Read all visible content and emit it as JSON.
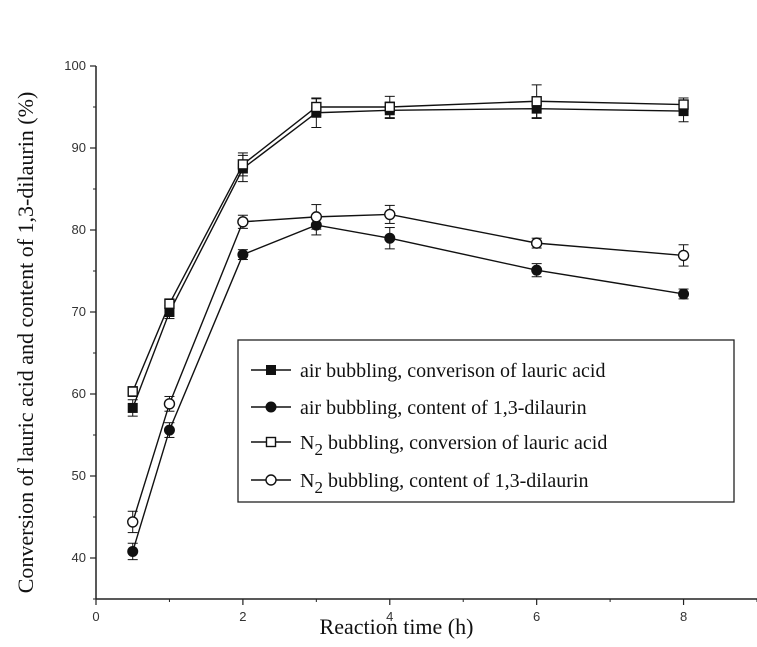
{
  "chart_data": {
    "type": "line",
    "xlabel": "Reaction time (h)",
    "ylabel": "Conversion of lauric acid and content of 1,3-dilaurin (%)",
    "xlim": [
      0,
      9
    ],
    "ylim": [
      35,
      100
    ],
    "x_ticks": [
      "0",
      "2",
      "4",
      "6",
      "8"
    ],
    "y_ticks": [
      "40",
      "50",
      "60",
      "70",
      "80",
      "90",
      "100"
    ],
    "legend_position": "lower-right",
    "grid": false,
    "x": [
      0.5,
      1,
      2,
      3,
      4,
      6,
      8
    ],
    "series": [
      {
        "name": "air bubbling, converison of lauric acid",
        "legend_prefix": "",
        "legend_sub": "",
        "legend_rest": "air bubbling, converison of lauric acid",
        "marker": "square-filled",
        "values": [
          58.3,
          70.0,
          87.5,
          94.3,
          94.6,
          94.8,
          94.5
        ],
        "errors": [
          1.0,
          0.8,
          1.6,
          1.8,
          1.0,
          1.2,
          1.3
        ]
      },
      {
        "name": "air bubbling, content of 1,3-dilaurin",
        "legend_prefix": "",
        "legend_sub": "",
        "legend_rest": "air bubbling, content of 1,3-dilaurin",
        "marker": "circle-filled",
        "values": [
          40.8,
          55.6,
          77.0,
          80.6,
          79.0,
          75.1,
          72.2
        ],
        "errors": [
          1.0,
          0.9,
          0.6,
          1.2,
          1.3,
          0.8,
          0.6
        ]
      },
      {
        "name": "N2 bubbling, conversion of lauric acid",
        "legend_prefix": "N",
        "legend_sub": "2",
        "legend_rest": " bubbling, conversion of lauric acid",
        "marker": "square-open",
        "values": [
          60.3,
          71.0,
          88.0,
          95.0,
          95.0,
          95.7,
          95.3
        ],
        "errors": [
          0.6,
          0.6,
          1.4,
          1.0,
          1.3,
          2.0,
          0.8
        ]
      },
      {
        "name": "N2 bubbling, content of 1,3-dilaurin",
        "legend_prefix": "N",
        "legend_sub": "2",
        "legend_rest": " bubbling, content of 1,3-dilaurin",
        "marker": "circle-open",
        "values": [
          44.4,
          58.8,
          81.0,
          81.6,
          81.9,
          78.4,
          76.9
        ],
        "errors": [
          1.3,
          0.9,
          0.8,
          1.5,
          1.1,
          0.6,
          1.3
        ]
      }
    ]
  }
}
